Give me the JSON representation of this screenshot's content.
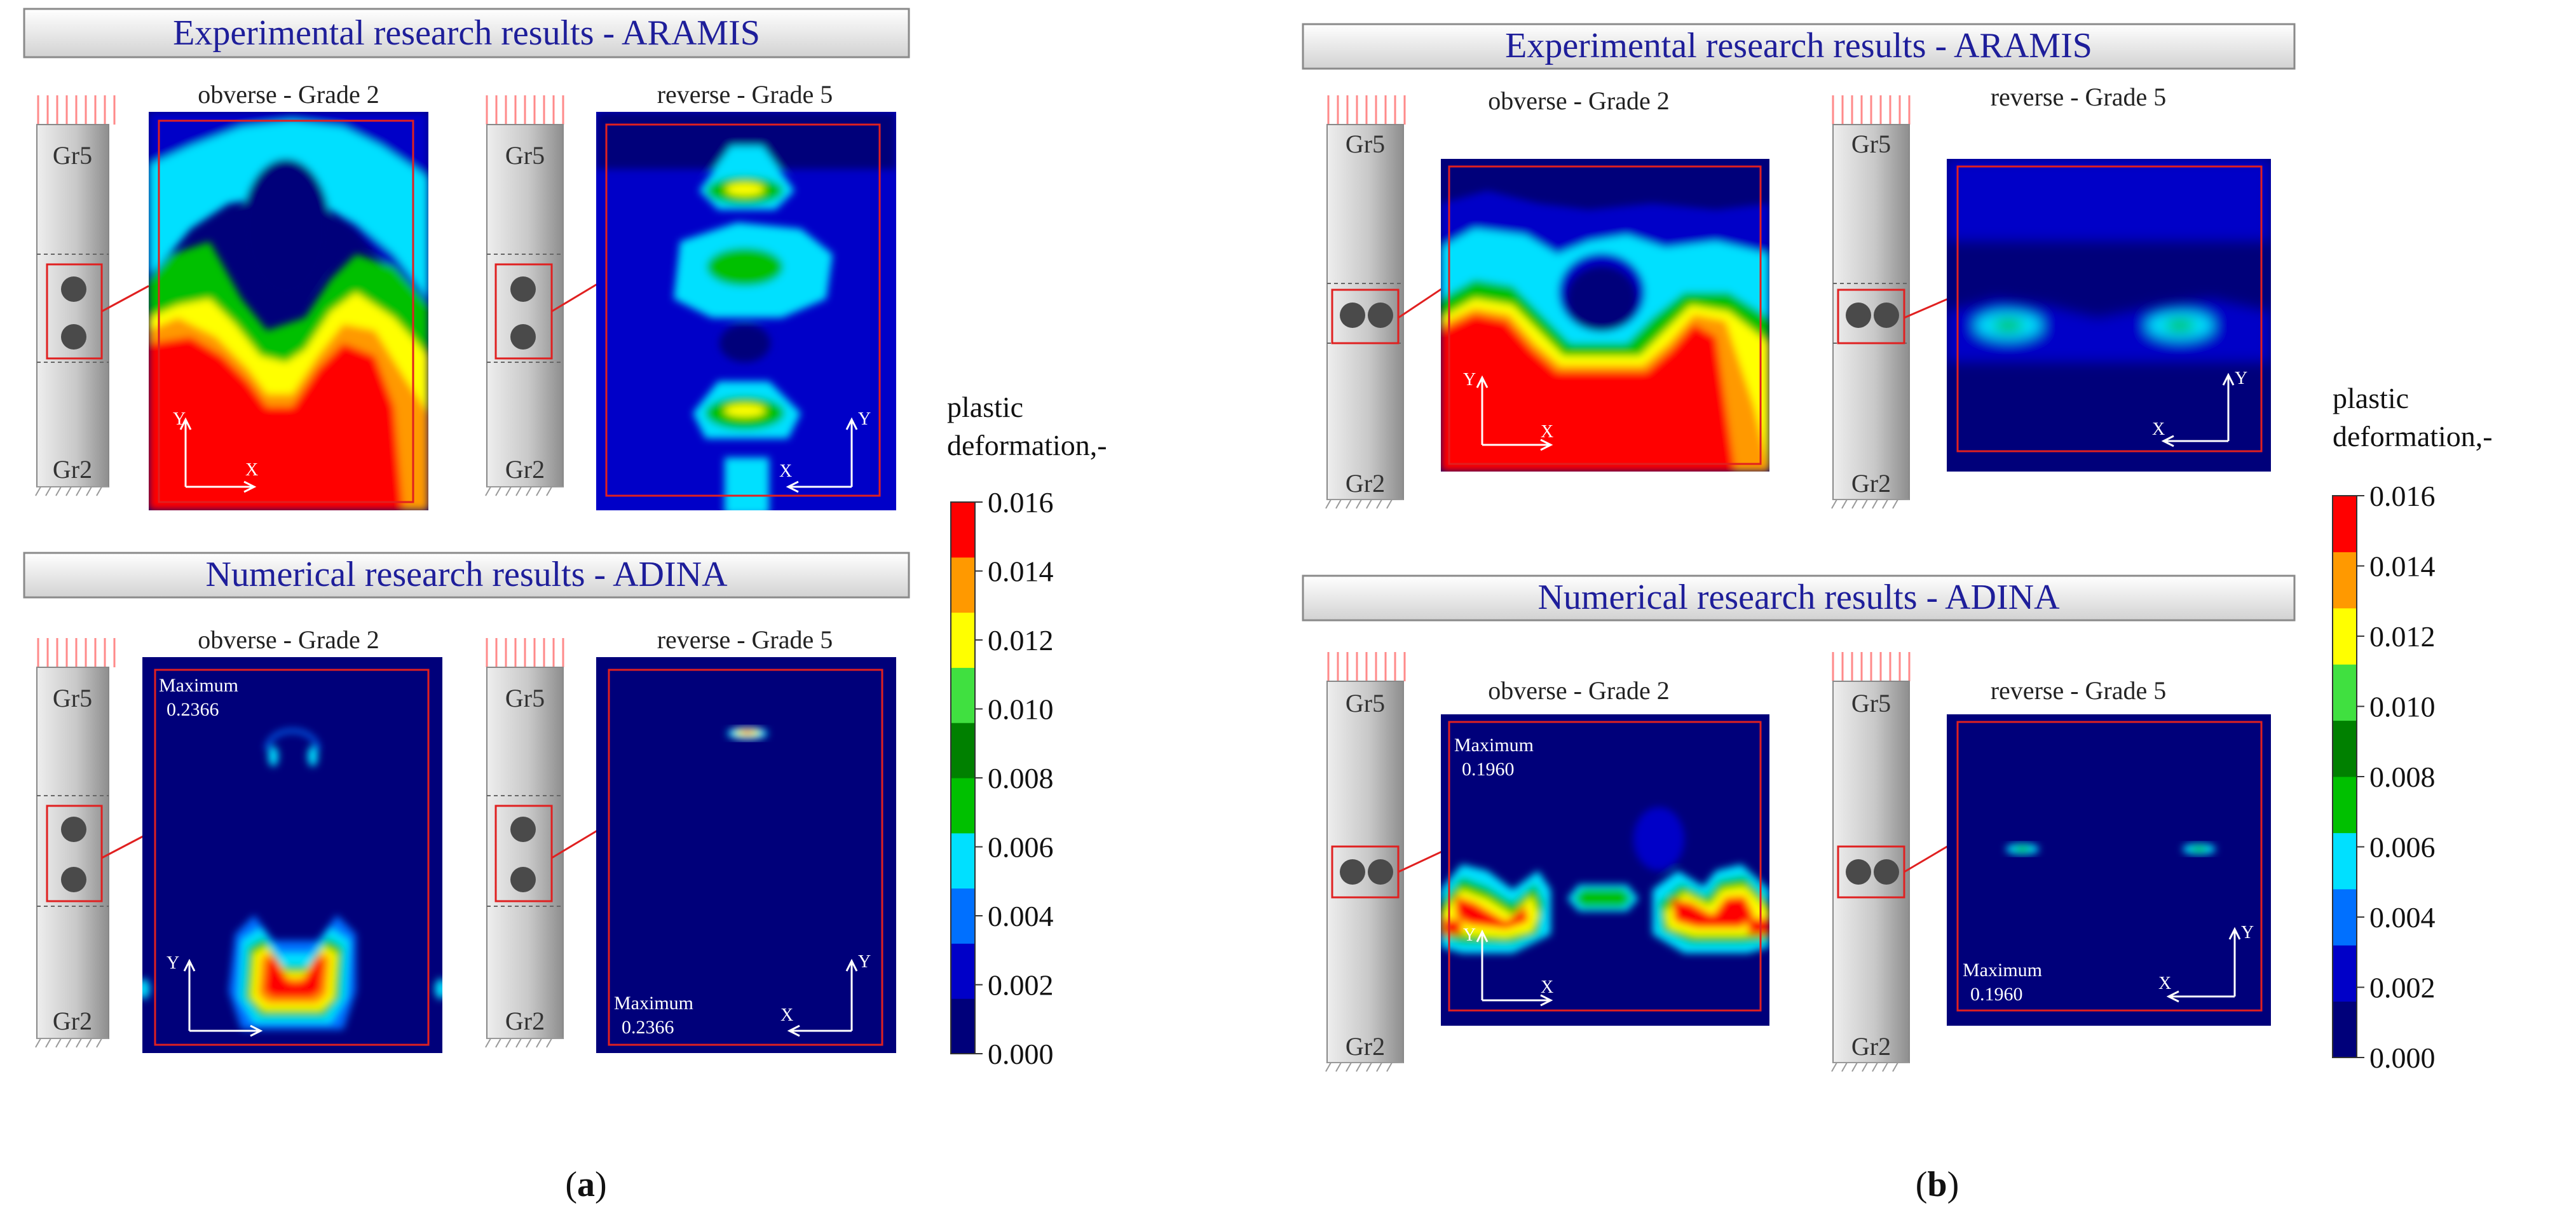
{
  "colors": {
    "title_text": "#1e1e9a",
    "title_bar_top": "#ffffff",
    "title_bar_bottom": "#d4d4d4",
    "frame_red": "#e02020",
    "axis_white": "#ffffff",
    "specimen_light": "#e6e6e6",
    "specimen_dark": "#9a9a9a",
    "hole": "#4a4a4a",
    "load_arrows": "#ff8a8a",
    "scale": [
      "#00007a",
      "#0000c8",
      "#0070ff",
      "#00e0ff",
      "#00c000",
      "#008000",
      "#40e040",
      "#ffff00",
      "#ff9900",
      "#ff0000"
    ]
  },
  "specimen": {
    "top": "Gr5",
    "bottom": "Gr2"
  },
  "axes": {
    "x": "X",
    "y": "Y"
  },
  "panels": {
    "a": {
      "label_open": "(",
      "label_letter": "a",
      "label_close": ")",
      "experimental": {
        "title": "Experimental research results - ARAMIS",
        "obverse": "obverse - Grade 2",
        "reverse": "reverse - Grade 5"
      },
      "numerical": {
        "title": "Numerical research results  - ADINA",
        "obverse": "obverse - Grade 2",
        "reverse": "reverse - Grade 5",
        "max_label": "Maximum",
        "max_value": "0.2366"
      }
    },
    "b": {
      "label_open": "(",
      "label_letter": "b",
      "label_close": ")",
      "experimental": {
        "title": "Experimental research results - ARAMIS",
        "obverse": "obverse - Grade 2",
        "reverse": "reverse - Grade 5"
      },
      "numerical": {
        "title": "Numerical research results  - ADINA",
        "obverse": "obverse - Grade 2",
        "reverse": "reverse - Grade 5",
        "max_label": "Maximum",
        "max_value": "0.1960"
      }
    }
  },
  "colorbar": {
    "title_line1": "plastic",
    "title_line2": "deformation,-",
    "ticks": [
      "0.016",
      "0.014",
      "0.012",
      "0.010",
      "0.008",
      "0.006",
      "0.004",
      "0.002",
      "0.000"
    ]
  }
}
